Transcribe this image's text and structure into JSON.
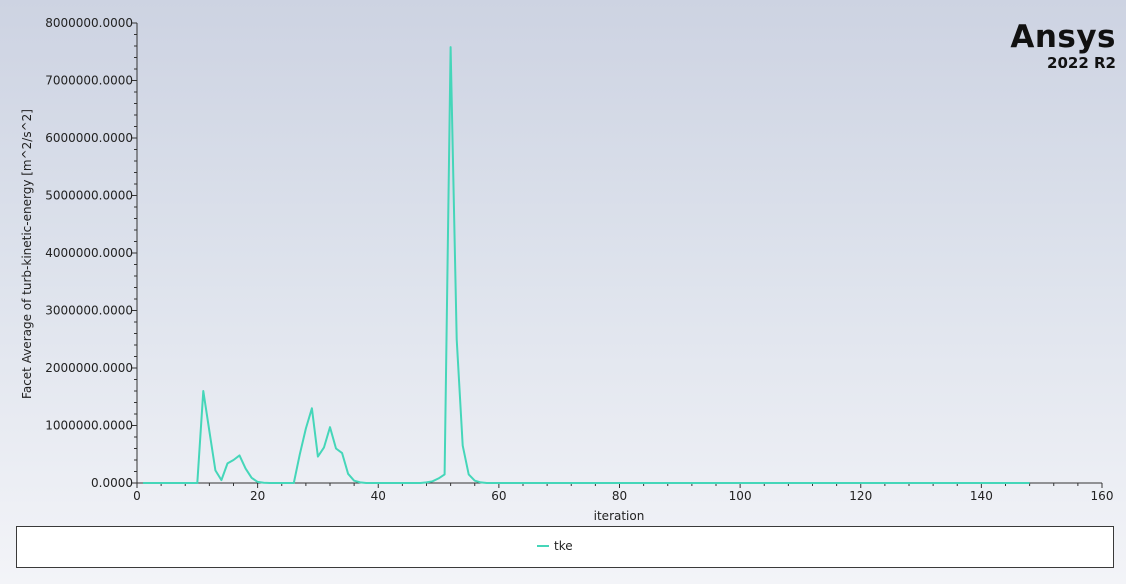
{
  "logo": {
    "name": "Ansys",
    "version": "2022 R2"
  },
  "colors": {
    "series": "#45d6b9",
    "axis": "#333333",
    "text": "#222222"
  },
  "chart_data": {
    "type": "line",
    "title": "",
    "xlabel": "iteration",
    "ylabel": "Facet Average of turb-kinetic-energy [m^2/s^2]",
    "xlim": [
      0,
      160
    ],
    "ylim": [
      0,
      8000000
    ],
    "xticks": [
      0,
      20,
      40,
      60,
      80,
      100,
      120,
      140,
      160
    ],
    "yticks": [
      0,
      1000000,
      2000000,
      3000000,
      4000000,
      5000000,
      6000000,
      7000000,
      8000000
    ],
    "ytick_labels": [
      "0.0000",
      "1000000.0000",
      "2000000.0000",
      "3000000.0000",
      "4000000.0000",
      "5000000.0000",
      "6000000.0000",
      "7000000.0000",
      "8000000.0000"
    ],
    "grid": false,
    "legend": "bottom",
    "series": [
      {
        "name": "tke",
        "x": [
          1,
          2,
          3,
          4,
          5,
          6,
          7,
          8,
          9,
          10,
          11,
          12,
          13,
          14,
          15,
          16,
          17,
          18,
          19,
          20,
          21,
          22,
          23,
          24,
          25,
          26,
          27,
          28,
          29,
          30,
          31,
          32,
          33,
          34,
          35,
          36,
          37,
          38,
          39,
          40,
          41,
          42,
          43,
          44,
          45,
          46,
          47,
          48,
          49,
          50,
          51,
          52,
          53,
          54,
          55,
          56,
          57,
          58,
          59,
          60,
          70,
          80,
          90,
          100,
          110,
          120,
          130,
          140,
          148
        ],
        "y": [
          0,
          0,
          0,
          0,
          0,
          0,
          0,
          0,
          0,
          0,
          1600000,
          900000,
          220000,
          50000,
          340000,
          400000,
          480000,
          250000,
          90000,
          20000,
          5000,
          0,
          0,
          0,
          0,
          0,
          500000,
          950000,
          1300000,
          460000,
          620000,
          970000,
          600000,
          520000,
          160000,
          40000,
          10000,
          0,
          0,
          0,
          0,
          0,
          0,
          0,
          0,
          0,
          0,
          10000,
          30000,
          80000,
          150000,
          7580000,
          2500000,
          650000,
          150000,
          40000,
          10000,
          0,
          0,
          0,
          0,
          0,
          0,
          0,
          0,
          0,
          0,
          0,
          0
        ]
      }
    ]
  }
}
